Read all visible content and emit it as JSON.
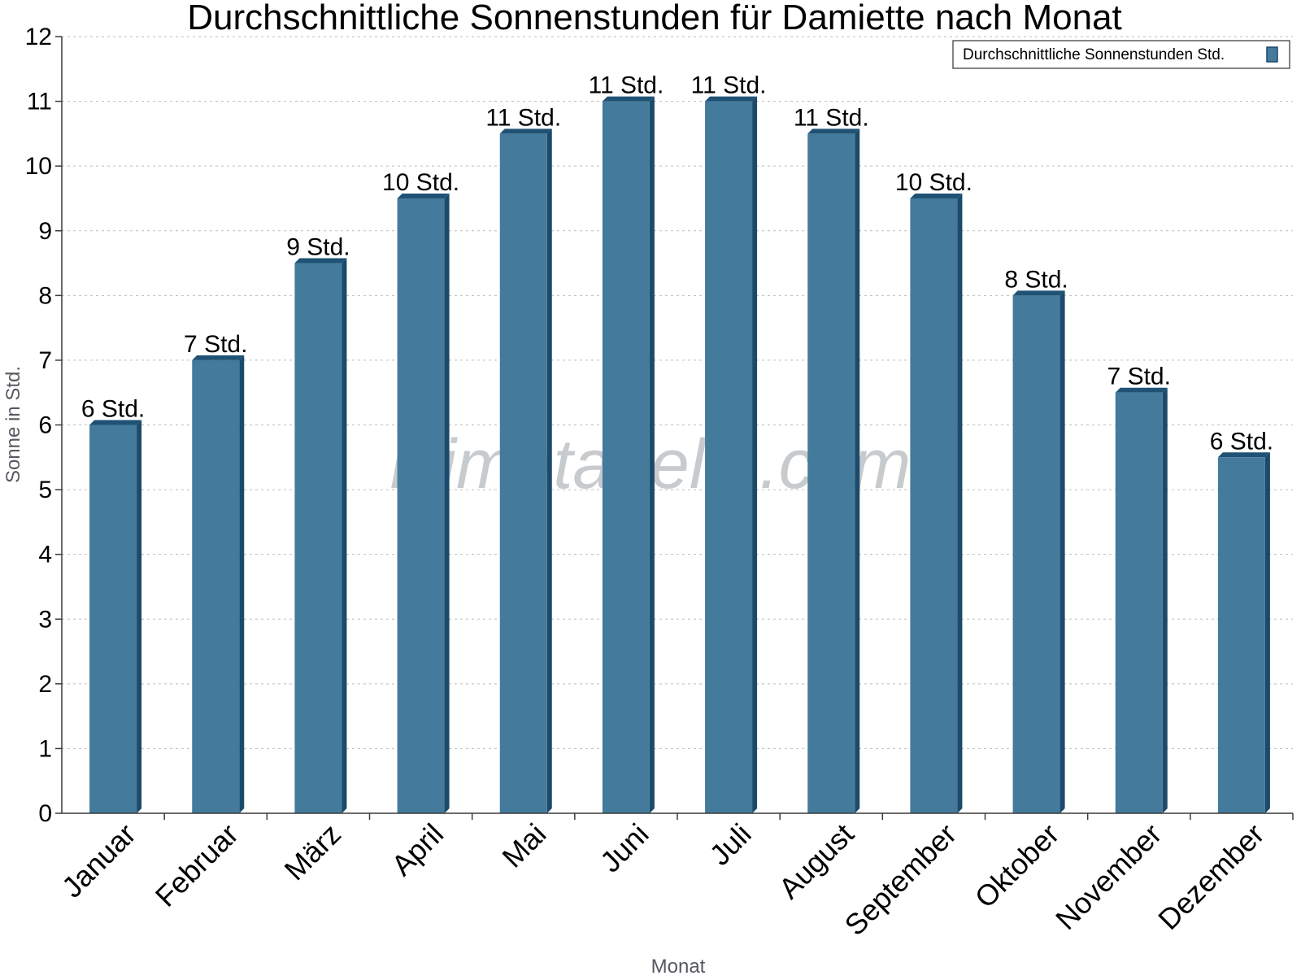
{
  "chart_data": {
    "type": "bar",
    "title": "Durchschnittliche Sonnenstunden für Damiette nach Monat",
    "xlabel": "Monat",
    "ylabel": "Sonne in Std.",
    "ylim": [
      0,
      12
    ],
    "yticks": [
      0,
      1,
      2,
      3,
      4,
      5,
      6,
      7,
      8,
      9,
      10,
      11,
      12
    ],
    "grid": true,
    "legend_position": "top-right",
    "categories": [
      "Januar",
      "Februar",
      "März",
      "April",
      "Mai",
      "Juni",
      "Juli",
      "August",
      "September",
      "Oktober",
      "November",
      "Dezember"
    ],
    "series": [
      {
        "name": "Durchschnittliche Sonnenstunden Std.",
        "values": [
          6,
          7,
          8.5,
          9.5,
          10.5,
          11,
          11,
          10.5,
          9.5,
          8,
          6.5,
          5.5
        ],
        "data_labels": [
          "6 Std.",
          "7 Std.",
          "9 Std.",
          "10 Std.",
          "11 Std.",
          "11 Std.",
          "11 Std.",
          "11 Std.",
          "10 Std.",
          "8 Std.",
          "7 Std.",
          "6 Std."
        ]
      }
    ],
    "colors": {
      "bar_front": "#447a9c",
      "bar_side": "#1b4a6b",
      "bar_top": "#1f5275"
    },
    "watermark": "klimatabelle.com"
  }
}
